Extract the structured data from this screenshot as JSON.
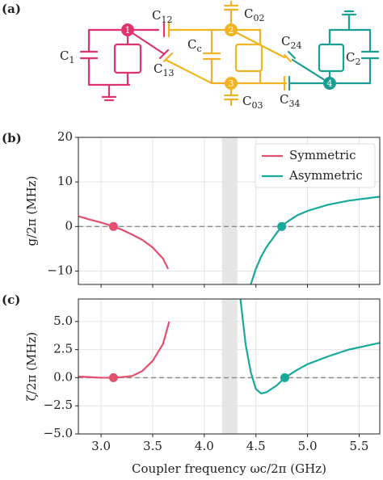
{
  "diagram": {
    "panel_label": "(a)",
    "labels": {
      "c1": "C1",
      "c12": "C12",
      "c02": "C02",
      "cc": "Cc",
      "c24": "C24",
      "c2": "C2",
      "c13": "C13",
      "c03": "C03",
      "c34": "C34"
    },
    "nodes": [
      "1",
      "2",
      "3",
      "4"
    ]
  },
  "chart_data": [
    {
      "type": "line",
      "panel_label": "(b)",
      "ylabel": "g/2π (MHz)",
      "xlim": [
        2.78,
        5.7
      ],
      "xticks": [
        3,
        3.5,
        4,
        4.5,
        5,
        5.5
      ],
      "show_xtick_labels": false,
      "ylim": [
        -13,
        20
      ],
      "yticks": [
        {
          "value": -10,
          "label": "−10"
        },
        0,
        10,
        20
      ],
      "grid": true,
      "legend": "upper right",
      "shaded_xrange": [
        4.17,
        4.32
      ],
      "reference_line": 0,
      "series": [
        {
          "name": "Symmetric",
          "color": "#e5506e",
          "x": [
            2.78,
            2.9,
            3.0,
            3.1,
            3.2,
            3.3,
            3.4,
            3.5,
            3.6,
            3.65
          ],
          "values": [
            2.3,
            1.5,
            0.9,
            0.15,
            -0.7,
            -1.8,
            -3.0,
            -4.7,
            -7.2,
            -9.5
          ],
          "points": {
            "x": [
              3.12
            ],
            "values": [
              0
            ]
          }
        },
        {
          "name": "Asymmetric",
          "color": "#17a99b",
          "x": [
            4.45,
            4.5,
            4.55,
            4.6,
            4.7,
            4.75,
            4.8,
            4.9,
            5.0,
            5.2,
            5.4,
            5.7
          ],
          "values": [
            -13,
            -9.5,
            -6.8,
            -4.7,
            -1.5,
            0,
            1.0,
            2.5,
            3.5,
            4.9,
            5.8,
            6.7
          ],
          "points": {
            "x": [
              4.75
            ],
            "values": [
              0
            ]
          }
        }
      ]
    },
    {
      "type": "line",
      "panel_label": "(c)",
      "ylabel": "ζ/2π (MHz)",
      "xlabel": "Coupler frequency ωc/2π (GHz)",
      "xlim": [
        2.78,
        5.7
      ],
      "xticks": [
        {
          "value": 3,
          "label": "3.0"
        },
        {
          "value": 3.5,
          "label": "3.5"
        },
        {
          "value": 4,
          "label": "4.0"
        },
        {
          "value": 4.5,
          "label": "4.5"
        },
        {
          "value": 5,
          "label": "5.0"
        },
        {
          "value": 5.5,
          "label": "5.5"
        }
      ],
      "show_xtick_labels": true,
      "ylim": [
        -5,
        7
      ],
      "yticks": [
        {
          "value": -5,
          "label": "−5.0"
        },
        {
          "value": -2.5,
          "label": "−2.5"
        },
        {
          "value": 0,
          "label": "0.0"
        },
        {
          "value": 2.5,
          "label": "2.5"
        },
        {
          "value": 5,
          "label": "5.0"
        }
      ],
      "grid": true,
      "legend": false,
      "shaded_xrange": [
        4.17,
        4.32
      ],
      "reference_line": 0,
      "series": [
        {
          "name": "Symmetric",
          "color": "#e5506e",
          "x": [
            2.78,
            2.9,
            3.0,
            3.12,
            3.2,
            3.3,
            3.4,
            3.5,
            3.6,
            3.66
          ],
          "values": [
            0.1,
            0.05,
            0.0,
            0.0,
            0.05,
            0.15,
            0.6,
            1.5,
            3.0,
            5.0
          ],
          "points": {
            "x": [
              3.12
            ],
            "values": [
              0
            ]
          }
        },
        {
          "name": "Asymmetric",
          "color": "#17a99b",
          "x": [
            4.35,
            4.4,
            4.45,
            4.5,
            4.55,
            4.6,
            4.7,
            4.78,
            4.9,
            5.0,
            5.2,
            5.4,
            5.7
          ],
          "values": [
            7,
            3.0,
            0.5,
            -1.0,
            -1.4,
            -1.3,
            -0.7,
            0,
            0.7,
            1.2,
            1.9,
            2.5,
            3.1
          ],
          "points": {
            "x": [
              4.78
            ],
            "values": [
              0
            ]
          }
        }
      ]
    }
  ]
}
